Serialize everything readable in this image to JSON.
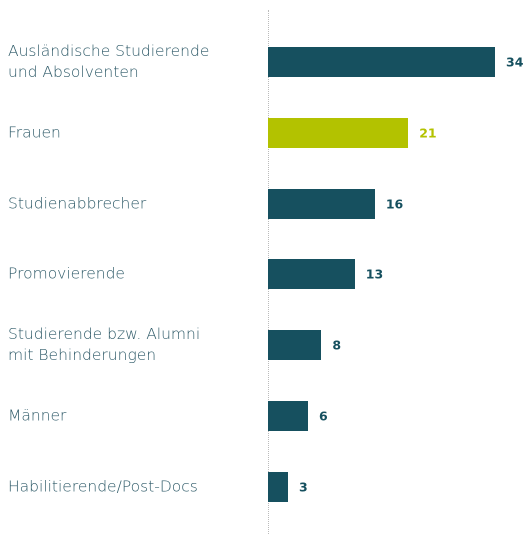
{
  "chart_data": {
    "type": "bar",
    "orientation": "horizontal",
    "categories": [
      "Ausländische Studierende\nund Absolventen",
      "Frauen",
      "Studienabbrecher",
      "Promovierende",
      "Studierende bzw. Alumni\nmit Behinderungen",
      "Männer",
      "Habilitierende/Post-Docs"
    ],
    "values": [
      34,
      21,
      16,
      13,
      8,
      6,
      3
    ],
    "colors": [
      "#16505f",
      "#b3c200",
      "#16505f",
      "#16505f",
      "#16505f",
      "#16505f",
      "#16505f"
    ],
    "xlim": [
      0,
      34
    ]
  }
}
